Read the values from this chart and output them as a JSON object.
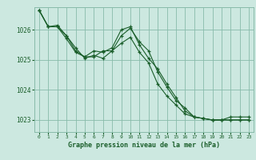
{
  "background_color": "#cce8e0",
  "grid_color": "#88bbaa",
  "line_color": "#1a5e2a",
  "marker": "+",
  "xlabel": "Graphe pression niveau de la mer (hPa)",
  "ylim": [
    1022.6,
    1026.75
  ],
  "xlim": [
    -0.5,
    23.5
  ],
  "yticks": [
    1023,
    1024,
    1025,
    1026
  ],
  "xticks": [
    0,
    1,
    2,
    3,
    4,
    5,
    6,
    7,
    8,
    9,
    10,
    11,
    12,
    13,
    14,
    15,
    16,
    17,
    18,
    19,
    20,
    21,
    22,
    23
  ],
  "series": [
    [
      1026.65,
      1026.1,
      1026.1,
      1025.7,
      1025.25,
      1025.1,
      1025.1,
      1025.3,
      1025.3,
      1025.55,
      1025.75,
      1025.25,
      1024.9,
      1024.2,
      1023.8,
      1023.5,
      1023.2,
      1023.1,
      1023.05,
      1023.0,
      1023.0,
      1023.0,
      1023.0,
      1023.0
    ],
    [
      1026.65,
      1026.1,
      1026.15,
      1025.8,
      1025.4,
      1025.05,
      1025.15,
      1025.05,
      1025.3,
      1025.8,
      1026.05,
      1025.6,
      1025.3,
      1024.6,
      1024.1,
      1023.65,
      1023.4,
      1023.1,
      1023.05,
      1023.0,
      1023.0,
      1023.1,
      1023.1,
      1023.1
    ],
    [
      1026.65,
      1026.1,
      1026.1,
      1025.8,
      1025.3,
      1025.1,
      1025.3,
      1025.25,
      1025.4,
      1026.0,
      1026.1,
      1025.5,
      1025.05,
      1024.7,
      1024.2,
      1023.75,
      1023.3,
      1023.1,
      1023.05,
      1023.0,
      1023.0,
      1023.0,
      1023.0,
      1023.0
    ]
  ]
}
